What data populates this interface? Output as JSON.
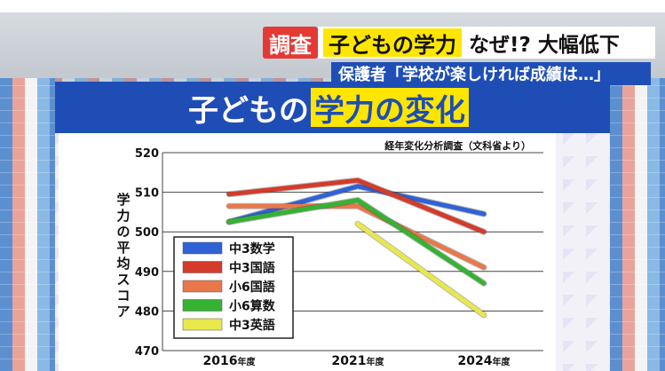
{
  "header": {
    "badge": "調査",
    "headline_highlight": "子どもの学力",
    "headline_rest": "なぜ!? 大幅低下",
    "subtitle": "保護者「学校が楽しければ成績は…」"
  },
  "board": {
    "title_white": "子どもの",
    "title_yellow": "学力の変化",
    "source": "経年変化分析調査（文科省より）"
  },
  "colors": {
    "中3数学": "#2f62d6",
    "中3国語": "#d43b2a",
    "小6国語": "#e8784a",
    "小6算数": "#36b233",
    "中3英語": "#e8e84a"
  },
  "chart_data": {
    "type": "line",
    "categories": [
      "2016年度",
      "2021年度",
      "2024年度"
    ],
    "ylabel": "学力の平均スコア",
    "ylim": [
      470,
      520
    ],
    "yticks": [
      470,
      480,
      490,
      500,
      510,
      520
    ],
    "series": [
      {
        "name": "中3数学",
        "values": [
          502.5,
          511.5,
          504.5
        ]
      },
      {
        "name": "中3国語",
        "values": [
          509.5,
          513,
          500
        ]
      },
      {
        "name": "小6国語",
        "values": [
          506.5,
          506.5,
          491
        ]
      },
      {
        "name": "小6算数",
        "values": [
          502.5,
          508,
          487
        ]
      },
      {
        "name": "中3英語",
        "values": [
          null,
          502,
          479
        ]
      }
    ]
  }
}
